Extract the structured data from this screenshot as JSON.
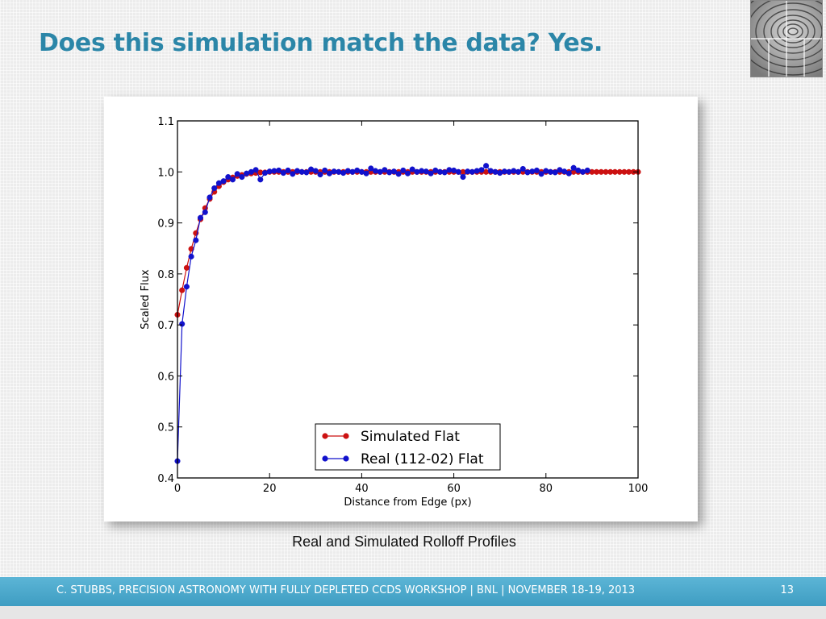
{
  "slide": {
    "title": "Does this simulation match the data? Yes.",
    "caption": "Real and Simulated Rolloff Profiles",
    "footer": "C. STUBBS, PRECISION ASTRONOMY WITH FULLY DEPLETED CCDS WORKSHOP  | BNL | NOVEMBER 18-19, 2013",
    "page_number": "13",
    "accent_color": "#2b86a8",
    "footer_color": "#4aa8cc"
  },
  "chart_data": {
    "type": "line",
    "xlabel": "Distance from Edge (px)",
    "ylabel": "Scaled Flux",
    "xlim": [
      0,
      100
    ],
    "ylim": [
      0.4,
      1.1
    ],
    "xticks": [
      0,
      20,
      40,
      60,
      80,
      100
    ],
    "yticks": [
      0.4,
      0.5,
      0.6,
      0.7,
      0.8,
      0.9,
      1.0,
      1.1
    ],
    "grid": false,
    "legend_position": "lower-right",
    "series": [
      {
        "name": "Simulated Flat",
        "color": "#cc1111",
        "x": [
          0,
          1,
          2,
          3,
          4,
          5,
          6,
          7,
          8,
          9,
          10,
          11,
          12,
          13,
          14,
          15,
          16,
          17,
          18,
          19,
          20,
          21,
          22,
          23,
          24,
          25,
          26,
          27,
          28,
          29,
          30,
          31,
          32,
          33,
          34,
          35,
          36,
          37,
          38,
          39,
          40,
          41,
          42,
          43,
          44,
          45,
          46,
          47,
          48,
          49,
          50,
          51,
          52,
          53,
          54,
          55,
          56,
          57,
          58,
          59,
          60,
          61,
          62,
          63,
          64,
          65,
          66,
          67,
          68,
          69,
          70,
          71,
          72,
          73,
          74,
          75,
          76,
          77,
          78,
          79,
          80,
          81,
          82,
          83,
          84,
          85,
          86,
          87,
          88,
          89,
          90,
          91,
          92,
          93,
          94,
          95,
          96,
          97,
          98,
          99,
          100
        ],
        "y": [
          0.72,
          0.768,
          0.812,
          0.849,
          0.88,
          0.907,
          0.929,
          0.947,
          0.961,
          0.972,
          0.98,
          0.985,
          0.989,
          0.992,
          0.994,
          0.996,
          0.997,
          0.998,
          0.999,
          0.999,
          1.0,
          1.0,
          1.0,
          1.0,
          1.0,
          1.0,
          1.0,
          1.0,
          1.0,
          1.0,
          1.0,
          1.0,
          1.0,
          1.0,
          1.0,
          1.0,
          1.0,
          1.0,
          1.0,
          1.0,
          1.0,
          1.0,
          1.0,
          1.0,
          1.0,
          1.0,
          1.0,
          1.0,
          1.0,
          1.0,
          1.0,
          1.0,
          1.0,
          1.0,
          1.0,
          1.0,
          1.0,
          1.0,
          1.0,
          1.0,
          1.0,
          1.0,
          1.0,
          1.0,
          1.0,
          1.0,
          1.0,
          1.0,
          1.0,
          1.0,
          1.0,
          1.0,
          1.0,
          1.0,
          1.0,
          1.0,
          1.0,
          1.0,
          1.0,
          1.0,
          1.0,
          1.0,
          1.0,
          1.0,
          1.0,
          1.0,
          1.0,
          1.0,
          1.0,
          1.0,
          1.0,
          1.0,
          1.0,
          1.0,
          1.0,
          1.0,
          1.0,
          1.0,
          1.0,
          1.0,
          1.0
        ]
      },
      {
        "name": "Real (112-02) Flat",
        "color": "#1111cc",
        "x": [
          0,
          1,
          2,
          3,
          4,
          5,
          6,
          7,
          8,
          9,
          10,
          11,
          12,
          13,
          14,
          15,
          16,
          17,
          18,
          19,
          20,
          21,
          22,
          23,
          24,
          25,
          26,
          27,
          28,
          29,
          30,
          31,
          32,
          33,
          34,
          35,
          36,
          37,
          38,
          39,
          40,
          41,
          42,
          43,
          44,
          45,
          46,
          47,
          48,
          49,
          50,
          51,
          52,
          53,
          54,
          55,
          56,
          57,
          58,
          59,
          60,
          61,
          62,
          63,
          64,
          65,
          66,
          67,
          68,
          69,
          70,
          71,
          72,
          73,
          74,
          75,
          76,
          77,
          78,
          79,
          80,
          81,
          82,
          83,
          84,
          85,
          86,
          87,
          88,
          89
        ],
        "y": [
          0.433,
          0.702,
          0.775,
          0.834,
          0.866,
          0.91,
          0.921,
          0.95,
          0.968,
          0.978,
          0.982,
          0.99,
          0.985,
          0.996,
          0.99,
          0.997,
          1.0,
          1.004,
          0.985,
          0.998,
          1.001,
          1.002,
          1.003,
          0.998,
          1.003,
          0.996,
          1.002,
          1.0,
          0.999,
          1.005,
          1.002,
          0.995,
          1.003,
          0.997,
          1.001,
          1.0,
          0.998,
          1.002,
          1.0,
          1.003,
          1.0,
          0.997,
          1.007,
          1.002,
          1.0,
          1.004,
          0.999,
          1.001,
          0.996,
          1.003,
          0.997,
          1.005,
          1.0,
          1.002,
          1.001,
          0.997,
          1.003,
          1.0,
          0.999,
          1.004,
          1.003,
          1.0,
          0.99,
          1.001,
          1.0,
          1.002,
          1.004,
          1.012,
          1.002,
          1.0,
          0.998,
          1.001,
          1.0,
          1.002,
          1.0,
          1.006,
          0.999,
          1.001,
          1.003,
          0.996,
          1.002,
          1.0,
          0.999,
          1.004,
          1.001,
          0.997,
          1.008,
          1.003,
          1.0,
          1.003
        ]
      }
    ]
  }
}
